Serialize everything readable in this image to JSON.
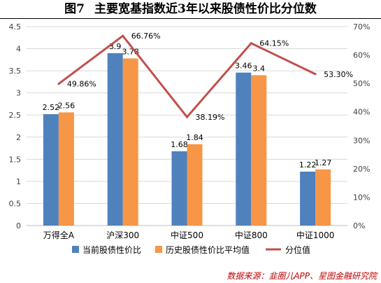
{
  "title": {
    "figure_no": "图7",
    "text": "主要宽基指数近3年以来股债性价比分位数"
  },
  "source": "数据来源：韭圈儿APP、星图金融研究院",
  "colors": {
    "current_bar": "#4f81bd",
    "historic_bar": "#f79646",
    "percentile_line": "#c0504d",
    "grid": "#d9d9d9",
    "axis_text": "#404040"
  },
  "chart_data": {
    "type": "bar",
    "categories": [
      "万得全A",
      "沪深300",
      "中证500",
      "中证800",
      "中证1000"
    ],
    "series": [
      {
        "name": "当前股债性价比",
        "type": "bar",
        "axis": "left",
        "values": [
          2.52,
          3.9,
          1.68,
          3.46,
          1.22
        ],
        "labels": [
          "2.52",
          "3.9",
          "1.68",
          "3.46",
          "1.22"
        ]
      },
      {
        "name": "历史股债性价比平均值",
        "type": "bar",
        "axis": "left",
        "values": [
          2.56,
          3.78,
          1.84,
          3.4,
          1.27
        ],
        "labels": [
          "2.56",
          "3.78",
          "1.84",
          "3.4",
          "1.27"
        ]
      },
      {
        "name": "分位值",
        "type": "line",
        "axis": "right",
        "values": [
          49.86,
          66.76,
          38.19,
          64.15,
          53.3
        ],
        "labels": [
          "49.86%",
          "66.76%",
          "38.19%",
          "64.15%",
          "53.30%"
        ]
      }
    ],
    "ylim": [
      0,
      4.5
    ],
    "y_ticks": [
      "0",
      "0.5",
      "1",
      "1.5",
      "2",
      "2.5",
      "3",
      "3.5",
      "4",
      "4.5"
    ],
    "y2lim": [
      0,
      70
    ],
    "y2_ticks": [
      "0%",
      "10%",
      "20%",
      "30%",
      "40%",
      "50%",
      "60%",
      "70%"
    ],
    "grid": true,
    "legend_position": "bottom"
  }
}
